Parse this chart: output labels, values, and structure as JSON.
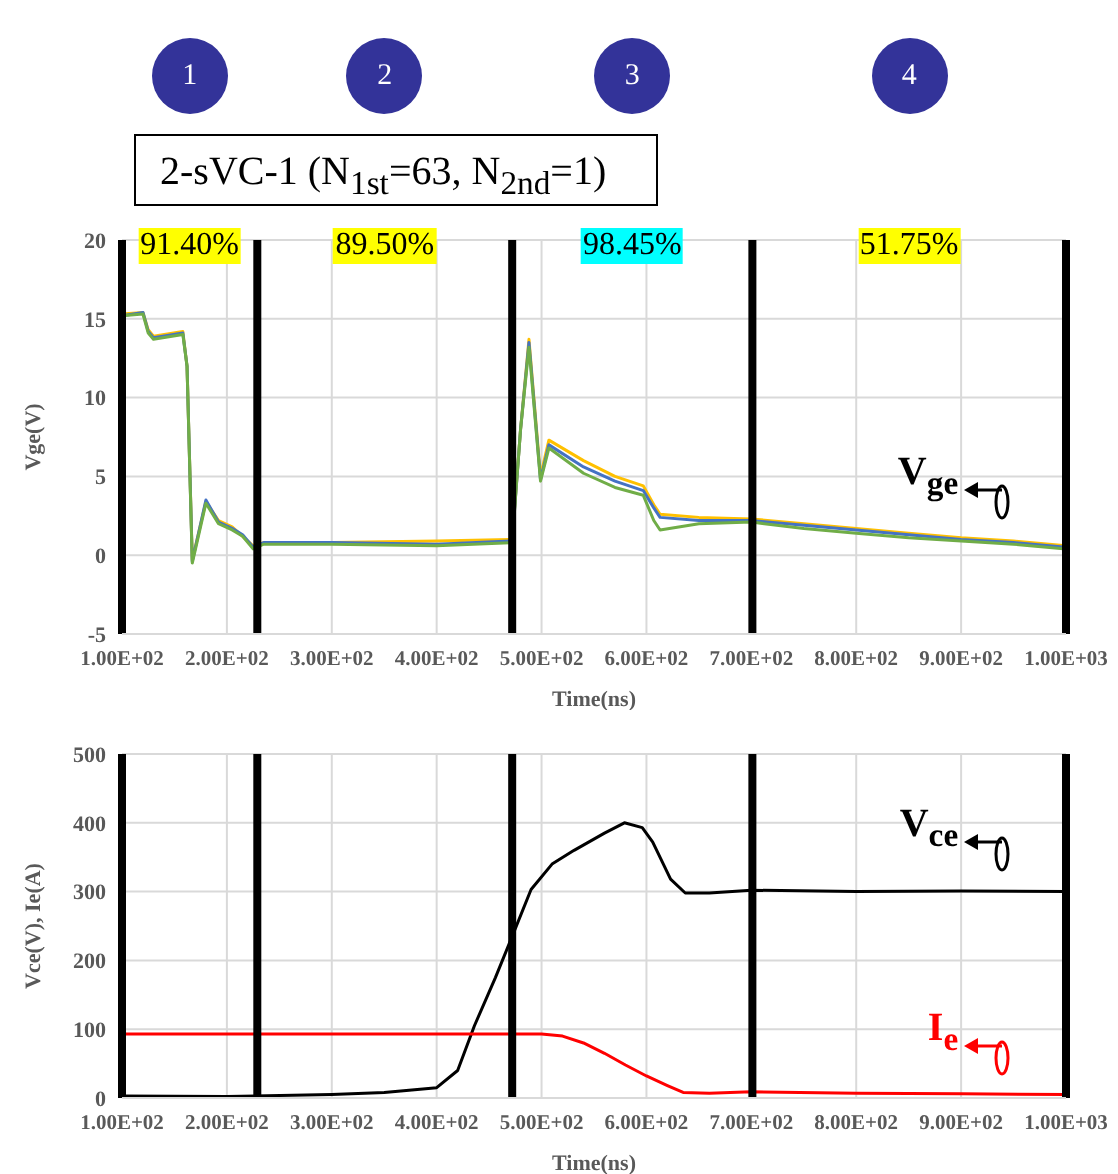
{
  "chart_data": [
    {
      "type": "line",
      "title": "2-sVC-1 (N$_{1st}$=63, N$_{2nd}$=1)",
      "xlabel": "Time(ns)",
      "ylabel": "Vge(V)",
      "xlim": [
        100,
        1000
      ],
      "xticks": [
        {
          "value": 100,
          "label": "1.00E+02"
        },
        {
          "value": 200,
          "label": "2.00E+02"
        },
        {
          "value": 300,
          "label": "3.00E+02"
        },
        {
          "value": 400,
          "label": "4.00E+02"
        },
        {
          "value": 500,
          "label": "5.00E+02"
        },
        {
          "value": 600,
          "label": "6.00E+02"
        },
        {
          "value": 700,
          "label": "7.00E+02"
        },
        {
          "value": 800,
          "label": "8.00E+02"
        },
        {
          "value": 900,
          "label": "9.00E+02"
        },
        {
          "value": 1000,
          "label": "1.00E+03"
        }
      ],
      "ylim": [
        -5,
        20
      ],
      "yticks": [
        -5,
        0,
        5,
        10,
        15,
        20
      ],
      "grid": true,
      "annotations": [
        "1",
        "2",
        "3",
        "4",
        "91.40%",
        "89.50%",
        "98.45%",
        "51.75%",
        "V$_{ge}$"
      ],
      "ref_lines": [
        {
          "axis": "x",
          "value": 100
        },
        {
          "axis": "x",
          "value": 229
        },
        {
          "axis": "x",
          "value": 472
        },
        {
          "axis": "x",
          "value": 701
        },
        {
          "axis": "x",
          "value": 1000
        }
      ],
      "series": [
        {
          "color": "#ffc000",
          "x": [
            100,
            120,
            125,
            130,
            158,
            162,
            167,
            180,
            192,
            205,
            215,
            225,
            235,
            300,
            400,
            472,
            480,
            488,
            499,
            507,
            540,
            570,
            597,
            607,
            613,
            650,
            700,
            750,
            800,
            850,
            900,
            950,
            1000
          ],
          "values": [
            15.3,
            15.4,
            14.3,
            13.9,
            14.2,
            12,
            -0.3,
            3.4,
            2.2,
            1.8,
            1.2,
            0.6,
            0.8,
            0.8,
            0.9,
            1,
            8,
            13.7,
            5,
            7.3,
            6,
            5,
            4.4,
            3.2,
            2.6,
            2.4,
            2.3,
            2,
            1.7,
            1.4,
            1.1,
            0.9,
            0.6
          ]
        },
        {
          "color": "#4472c4",
          "x": [
            100,
            120,
            125,
            130,
            158,
            162,
            167,
            180,
            192,
            205,
            215,
            225,
            235,
            300,
            400,
            472,
            480,
            488,
            499,
            507,
            540,
            570,
            597,
            607,
            613,
            650,
            700,
            750,
            800,
            850,
            900,
            950,
            1000
          ],
          "values": [
            15.2,
            15.4,
            14.2,
            13.8,
            14.1,
            12,
            -0.4,
            3.5,
            2.1,
            1.7,
            1.3,
            0.5,
            0.8,
            0.8,
            0.7,
            0.9,
            8,
            13.5,
            4.8,
            7,
            5.6,
            4.7,
            4.1,
            3,
            2.4,
            2.2,
            2.2,
            1.9,
            1.6,
            1.3,
            1,
            0.8,
            0.5
          ]
        },
        {
          "color": "#70ad47",
          "x": [
            100,
            120,
            125,
            130,
            158,
            162,
            167,
            180,
            192,
            205,
            215,
            225,
            235,
            300,
            400,
            472,
            480,
            488,
            499,
            507,
            540,
            570,
            597,
            607,
            613,
            650,
            700,
            750,
            800,
            850,
            900,
            950,
            1000
          ],
          "values": [
            15.2,
            15.3,
            14.1,
            13.7,
            14,
            12,
            -0.5,
            3.3,
            2,
            1.6,
            1.2,
            0.4,
            0.7,
            0.7,
            0.6,
            0.8,
            8,
            13.2,
            4.7,
            6.8,
            5.2,
            4.3,
            3.8,
            2.2,
            1.6,
            2,
            2.1,
            1.7,
            1.4,
            1.1,
            0.9,
            0.7,
            0.4
          ]
        }
      ]
    },
    {
      "type": "line",
      "xlabel": "Time(ns)",
      "ylabel": "Vce(V), Ie(A)",
      "xlim": [
        100,
        1000
      ],
      "xticks": [
        {
          "value": 100,
          "label": "1.00E+02"
        },
        {
          "value": 200,
          "label": "2.00E+02"
        },
        {
          "value": 300,
          "label": "3.00E+02"
        },
        {
          "value": 400,
          "label": "4.00E+02"
        },
        {
          "value": 500,
          "label": "5.00E+02"
        },
        {
          "value": 600,
          "label": "6.00E+02"
        },
        {
          "value": 700,
          "label": "7.00E+02"
        },
        {
          "value": 800,
          "label": "8.00E+02"
        },
        {
          "value": 900,
          "label": "9.00E+02"
        },
        {
          "value": 1000,
          "label": "1.00E+03"
        }
      ],
      "ylim": [
        0,
        500
      ],
      "yticks": [
        0,
        100,
        200,
        300,
        400,
        500
      ],
      "grid": true,
      "annotations": [
        "V$_{ce}$",
        "I$_{e}$"
      ],
      "ref_lines": [
        {
          "axis": "x",
          "value": 100
        },
        {
          "axis": "x",
          "value": 229
        },
        {
          "axis": "x",
          "value": 472
        },
        {
          "axis": "x",
          "value": 701
        },
        {
          "axis": "x",
          "value": 1000
        }
      ],
      "series": [
        {
          "color": "#000000",
          "x": [
            100,
            200,
            300,
            350,
            400,
            420,
            436,
            456,
            472,
            490,
            510,
            531,
            560,
            579,
            596,
            606,
            623,
            637,
            660,
            700,
            800,
            900,
            1000
          ],
          "values": [
            3,
            2,
            5,
            8,
            15,
            40,
            105,
            175,
            235,
            303,
            340,
            360,
            385,
            400,
            393,
            372,
            318,
            298,
            298,
            302,
            300,
            301,
            300
          ]
        },
        {
          "color": "#ff0000",
          "x": [
            100,
            300,
            500,
            520,
            540,
            560,
            580,
            600,
            620,
            635,
            660,
            700,
            800,
            900,
            1000
          ],
          "values": [
            93,
            93,
            93,
            90,
            80,
            65,
            48,
            32,
            18,
            8,
            7,
            9,
            7,
            6,
            5
          ]
        }
      ]
    }
  ]
}
